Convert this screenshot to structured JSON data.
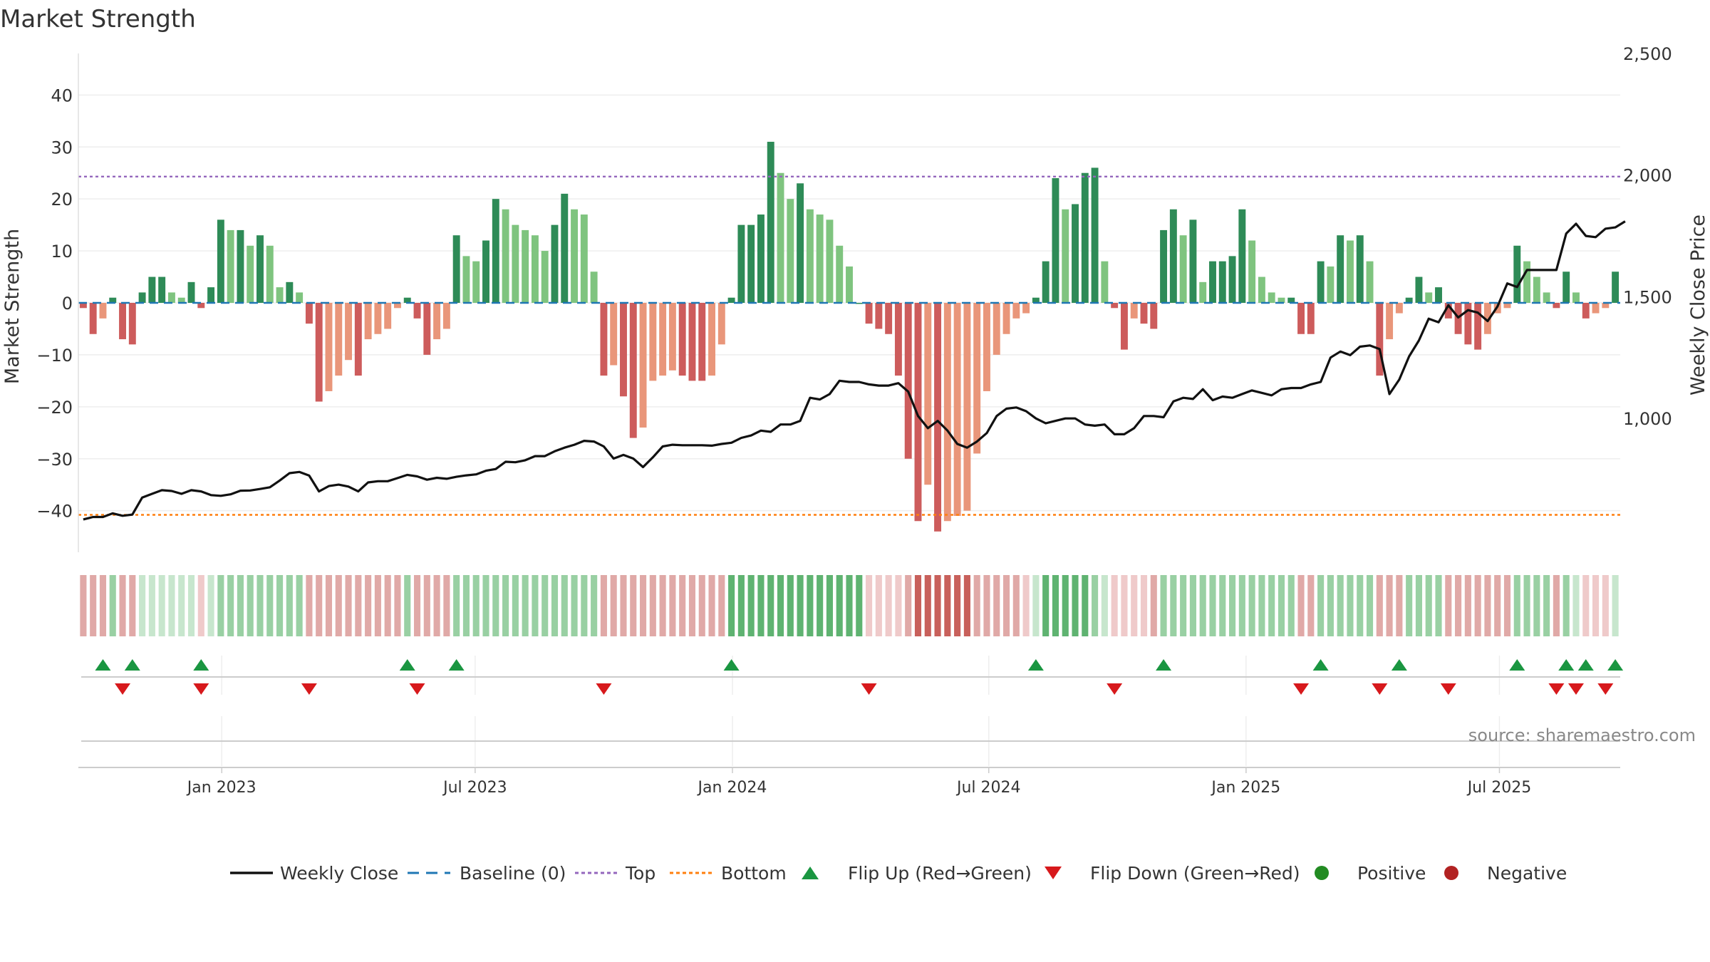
{
  "title": "Market Strength",
  "source": "source: sharemaestro.com",
  "colors": {
    "strong_green": "#2e8b57",
    "light_green": "#7fc47f",
    "strong_red": "#cd5c5c",
    "light_red": "#e9967a",
    "line": "#111111",
    "baseline": "#1f77b4",
    "top": "#9467bd",
    "bottom": "#ff7f0e",
    "flip_up": "#1a9641",
    "flip_down": "#d7191c",
    "positive": "#228b22",
    "negative": "#b22222"
  },
  "chart_data": {
    "type": "bar",
    "title": "Market Strength",
    "ylabel": "Market Strength",
    "y2label": "Weekly Close Price",
    "ylim": [
      -48,
      48
    ],
    "y2lim": [
      450,
      2500
    ],
    "yticks": [
      40,
      30,
      20,
      10,
      0,
      -10,
      -20,
      -30,
      -40
    ],
    "y2ticks": [
      {
        "value": 2500,
        "label": "2,500"
      },
      {
        "value": 2000,
        "label": "2,000"
      },
      {
        "value": 1500,
        "label": "1,500"
      },
      {
        "value": 1000,
        "label": "1,000"
      }
    ],
    "xticks": [
      "Jan 2023",
      "Jul 2023",
      "Jan 2024",
      "Jul 2024",
      "Jan 2025",
      "Jul 2025"
    ],
    "xtick_weeks": [
      14.6,
      40.4,
      66.6,
      92.7,
      118.9,
      144.7
    ],
    "top": 24.3,
    "bottom": -40.8,
    "legend_position": "bottom",
    "strength": [
      -1,
      -6,
      -3,
      1,
      -7,
      -8,
      2,
      5,
      5,
      2,
      1,
      4,
      -1,
      3,
      16,
      14,
      14,
      11,
      13,
      11,
      3,
      4,
      2,
      -4,
      -19,
      -17,
      -14,
      -11,
      -14,
      -7,
      -6,
      -5,
      -1,
      1,
      -3,
      -10,
      -7,
      -5,
      13,
      9,
      8,
      12,
      20,
      18,
      15,
      14,
      13,
      10,
      15,
      21,
      18,
      17,
      6,
      -14,
      -12,
      -18,
      -26,
      -24,
      -15,
      -14,
      -13,
      -14,
      -15,
      -15,
      -14,
      -8,
      1,
      15,
      15,
      17,
      31,
      25,
      20,
      23,
      18,
      17,
      16,
      11,
      7,
      0,
      -4,
      -5,
      -6,
      -14,
      -30,
      -42,
      -35,
      -44,
      -42,
      -41,
      -40,
      -29,
      -17,
      -10,
      -6,
      -3,
      -2,
      1,
      8,
      24,
      18,
      19,
      25,
      26,
      8,
      -1,
      -9,
      -3,
      -4,
      -5,
      14,
      18,
      13,
      16,
      4,
      8,
      8,
      9,
      18,
      12,
      5,
      2,
      1,
      1,
      -6,
      -6,
      8,
      7,
      13,
      12,
      13,
      8,
      -14,
      -7,
      -2,
      1,
      5,
      2,
      3,
      -3,
      -6,
      -8,
      -9,
      -6,
      -2,
      -1,
      11,
      8,
      5,
      2,
      -1,
      6,
      2,
      -3,
      -2,
      -1,
      6
    ],
    "weekly_close": [
      585,
      595,
      595,
      610,
      600,
      605,
      675,
      690,
      705,
      702,
      690,
      705,
      700,
      685,
      682,
      688,
      703,
      704,
      710,
      717,
      745,
      775,
      780,
      765,
      700,
      722,
      728,
      720,
      700,
      737,
      742,
      742,
      755,
      768,
      762,
      748,
      756,
      752,
      760,
      766,
      770,
      785,
      792,
      822,
      820,
      828,
      845,
      845,
      865,
      880,
      892,
      908,
      905,
      885,
      835,
      850,
      835,
      800,
      840,
      885,
      892,
      890,
      890,
      890,
      888,
      895,
      900,
      920,
      930,
      950,
      945,
      975,
      975,
      990,
      1085,
      1078,
      1100,
      1155,
      1150,
      1150,
      1140,
      1135,
      1135,
      1145,
      1110,
      1010,
      960,
      990,
      950,
      895,
      880,
      905,
      940,
      1010,
      1040,
      1045,
      1030,
      1000,
      980,
      990,
      1000,
      1000,
      975,
      970,
      975,
      935,
      935,
      960,
      1010,
      1010,
      1005,
      1070,
      1085,
      1080,
      1120,
      1075,
      1090,
      1085,
      1100,
      1115,
      1105,
      1095,
      1120,
      1125,
      1125,
      1140,
      1150,
      1250,
      1275,
      1260,
      1295,
      1300,
      1285,
      1100,
      1160,
      1255,
      1320,
      1410,
      1395,
      1465,
      1415,
      1445,
      1435,
      1400,
      1460,
      1555,
      1540,
      1610,
      1610,
      1610,
      1610,
      1760,
      1800,
      1750,
      1745,
      1780,
      1785,
      1810
    ],
    "heat_levels": [
      1,
      1,
      1,
      1,
      1,
      1,
      0,
      0,
      0,
      0,
      0,
      0,
      0,
      0,
      1,
      1,
      1,
      1,
      1,
      1,
      1,
      1,
      1,
      1,
      1,
      1,
      1,
      1,
      1,
      1,
      1,
      1,
      1,
      1,
      1,
      1,
      1,
      1,
      1,
      1,
      1,
      1,
      1,
      1,
      1,
      1,
      1,
      1,
      1,
      1,
      1,
      1,
      1,
      1,
      1,
      1,
      1,
      1,
      1,
      1,
      1,
      1,
      1,
      1,
      1,
      1,
      2,
      2,
      2,
      2,
      2,
      2,
      2,
      2,
      2,
      2,
      2,
      2,
      2,
      2,
      0,
      0,
      0,
      0,
      1,
      2,
      2,
      2,
      2,
      2,
      2,
      1,
      1,
      1,
      1,
      1,
      0,
      0,
      2,
      2,
      2,
      2,
      2,
      1,
      0,
      0,
      0,
      0,
      0,
      1,
      1,
      1,
      1,
      1,
      1,
      1,
      1,
      1,
      1,
      1,
      1,
      1,
      1,
      1,
      1,
      1,
      1,
      1,
      1,
      1,
      1,
      1,
      1,
      1,
      1,
      1,
      1,
      1,
      1,
      1,
      1,
      1,
      1,
      1,
      1,
      1,
      1,
      1,
      1,
      1,
      1,
      1,
      0,
      0,
      0,
      0,
      0,
      0
    ],
    "flip_up_weeks": [
      2.5,
      5.5,
      12.5,
      33.5,
      38.5,
      66.5,
      97.5,
      110.5,
      126.5,
      134.5,
      146.5,
      151.5,
      153.5,
      156.5
    ],
    "flip_down_weeks": [
      4.5,
      12.5,
      23.5,
      34.5,
      53.5,
      80.5,
      105.5,
      124.5,
      132.5,
      139.5,
      150.5,
      152.5,
      155.5
    ]
  },
  "legend": [
    {
      "label": "Weekly Close",
      "kind": "line"
    },
    {
      "label": "Baseline (0)",
      "kind": "dashed"
    },
    {
      "label": "Top",
      "kind": "dotted-top"
    },
    {
      "label": "Bottom",
      "kind": "dotted-bottom"
    },
    {
      "label": "Flip Up (Red→Green)",
      "kind": "tri-up"
    },
    {
      "label": "Flip Down (Green→Red)",
      "kind": "tri-down"
    },
    {
      "label": "Positive",
      "kind": "dot-positive"
    },
    {
      "label": "Negative",
      "kind": "dot-negative"
    }
  ]
}
